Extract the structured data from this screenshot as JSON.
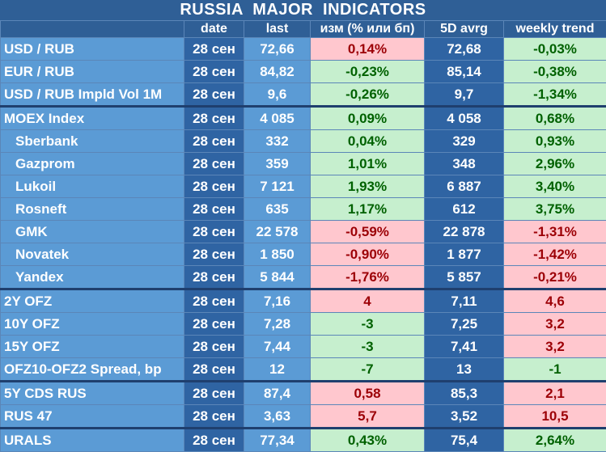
{
  "title": "RUSSIA   MAJOR   INDICATORS",
  "headers": [
    "",
    "date",
    "last",
    "изм (% или бп)",
    "5D avrg",
    "weekly trend"
  ],
  "rows": [
    {
      "name": "USD / RUB",
      "date": "28 сен",
      "last": "72,66",
      "change": "0,14%",
      "avg": "72,68",
      "trend": "-0,03%"
    },
    {
      "name": "EUR / RUB",
      "date": "28 сен",
      "last": "84,82",
      "change": "-0,23%",
      "avg": "85,14",
      "trend": "-0,38%"
    },
    {
      "name": "USD / RUB Impld Vol 1M",
      "date": "28 сен",
      "last": "9,6",
      "change": "-0,26%",
      "avg": "9,7",
      "trend": "-1,34%"
    },
    {
      "name": "MOEX Index",
      "date": "28 сен",
      "last": "4 085",
      "change": "0,09%",
      "avg": "4 058",
      "trend": "0,68%"
    },
    {
      "name": "Sberbank",
      "date": "28 сен",
      "last": "332",
      "change": "0,04%",
      "avg": "329",
      "trend": "0,93%"
    },
    {
      "name": "Gazprom",
      "date": "28 сен",
      "last": "359",
      "change": "1,01%",
      "avg": "348",
      "trend": "2,96%"
    },
    {
      "name": "Lukoil",
      "date": "28 сен",
      "last": "7 121",
      "change": "1,93%",
      "avg": "6 887",
      "trend": "3,40%"
    },
    {
      "name": "Rosneft",
      "date": "28 сен",
      "last": "635",
      "change": "1,17%",
      "avg": "612",
      "trend": "3,75%"
    },
    {
      "name": "GMK",
      "date": "28 сен",
      "last": "22 578",
      "change": "-0,59%",
      "avg": "22 878",
      "trend": "-1,31%"
    },
    {
      "name": "Novatek",
      "date": "28 сен",
      "last": "1 850",
      "change": "-0,90%",
      "avg": "1 877",
      "trend": "-1,42%"
    },
    {
      "name": "Yandex",
      "date": "28 сен",
      "last": "5 844",
      "change": "-1,76%",
      "avg": "5 857",
      "trend": "-0,21%"
    },
    {
      "name": "2Y OFZ",
      "date": "28 сен",
      "last": "7,16",
      "change": "4",
      "avg": "7,11",
      "trend": "4,6"
    },
    {
      "name": "10Y OFZ",
      "date": "28 сен",
      "last": "7,28",
      "change": "-3",
      "avg": "7,25",
      "trend": "3,2"
    },
    {
      "name": "15Y OFZ",
      "date": "28 сен",
      "last": "7,44",
      "change": "-3",
      "avg": "7,41",
      "trend": "3,2"
    },
    {
      "name": "OFZ10-OFZ2 Spread, bp",
      "date": "28 сен",
      "last": "12",
      "change": "-7",
      "avg": "13",
      "trend": "-1"
    },
    {
      "name": "5Y CDS RUS",
      "date": "28 сен",
      "last": "87,4",
      "change": "0,58",
      "avg": "85,3",
      "trend": "2,1"
    },
    {
      "name": "RUS 47",
      "date": "28 сен",
      "last": "3,63",
      "change": "5,7",
      "avg": "3,52",
      "trend": "10,5"
    },
    {
      "name": "URALS",
      "date": "28 сен",
      "last": "77,34",
      "change": "0,43%",
      "avg": "75,4",
      "trend": "2,64%"
    }
  ],
  "colors": {
    "header_blue": "#2f5f96",
    "light_blue": "#5b9bd5",
    "dark_blue": "#2f64a3",
    "positive_fill": "#c6efce",
    "positive_text": "#006100",
    "negative_fill": "#ffc7ce",
    "negative_text": "#9c0006"
  }
}
